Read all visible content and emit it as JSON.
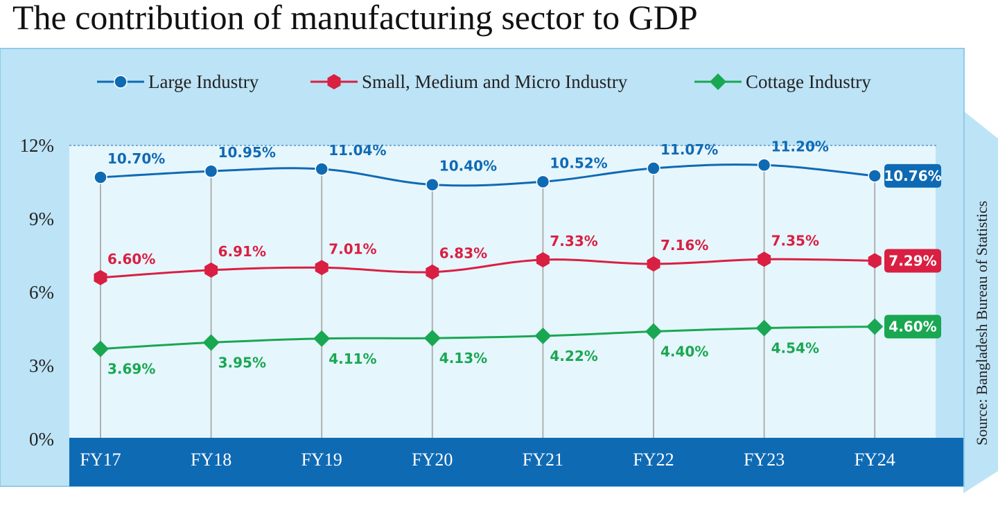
{
  "colors": {
    "large": "#0f6ab4",
    "small": "#d91f42",
    "cottage": "#19a752",
    "axis_band": "#0f6ab4",
    "panel_bg": "#bde3f6",
    "plot_bg": "#e6f6fd"
  },
  "chart_data": {
    "type": "line",
    "title": "The contribution of manufacturing sector to GDP",
    "categories": [
      "FY17",
      "FY18",
      "FY19",
      "FY20",
      "FY21",
      "FY22",
      "FY23",
      "FY24"
    ],
    "yticks": [
      "0%",
      "3%",
      "6%",
      "9%",
      "12%"
    ],
    "ylim": [
      0,
      12
    ],
    "series": [
      {
        "key": "large",
        "name": "Large Industry",
        "marker": "circle",
        "values": [
          10.7,
          10.95,
          11.04,
          10.4,
          10.52,
          11.07,
          11.2,
          10.76
        ],
        "labels": [
          "10.70%",
          "10.95%",
          "11.04%",
          "10.40%",
          "10.52%",
          "11.07%",
          "11.20%",
          "10.76%"
        ]
      },
      {
        "key": "small",
        "name": "Small, Medium and Micro Industry",
        "marker": "hexagon",
        "values": [
          6.6,
          6.91,
          7.01,
          6.83,
          7.33,
          7.16,
          7.35,
          7.29
        ],
        "labels": [
          "6.60%",
          "6.91%",
          "7.01%",
          "6.83%",
          "7.33%",
          "7.16%",
          "7.35%",
          "7.29%"
        ]
      },
      {
        "key": "cottage",
        "name": "Cottage Industry",
        "marker": "diamond",
        "values": [
          3.69,
          3.95,
          4.11,
          4.13,
          4.22,
          4.4,
          4.54,
          4.6
        ],
        "labels": [
          "3.69%",
          "3.95%",
          "4.11%",
          "4.13%",
          "4.22%",
          "4.40%",
          "4.54%",
          "4.60%"
        ]
      }
    ],
    "source": "Source: Bangladesh Bureau of Statistics",
    "legend_position": "top"
  }
}
